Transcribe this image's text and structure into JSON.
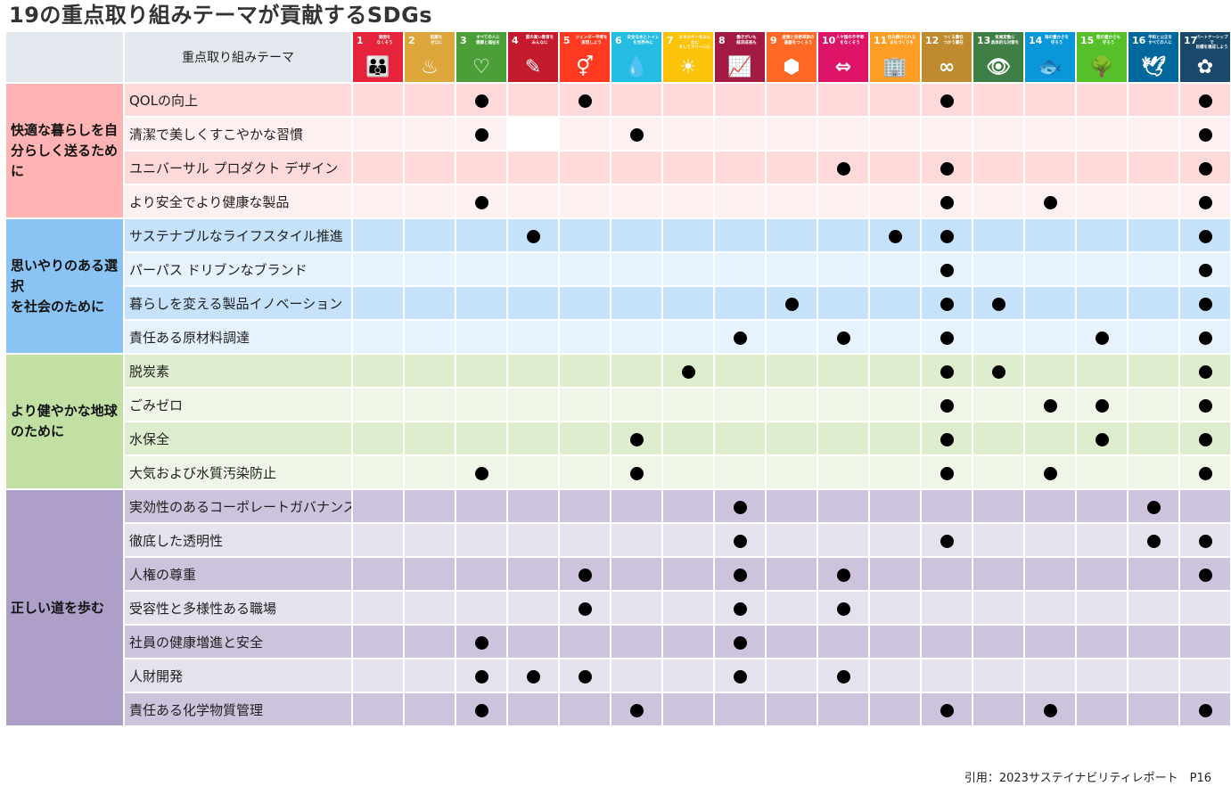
{
  "title": "19の重点取り組みテーマが貢献するSDGs",
  "header_label": "重点取り組みテーマ",
  "sdgs": [
    {
      "num": "1",
      "title": "貧困を\nなくそう",
      "color": "#e5243b",
      "icon": "people-icon",
      "glyph": "👪"
    },
    {
      "num": "2",
      "title": "飢餓を\nゼロに",
      "color": "#dda63a",
      "icon": "bowl-icon",
      "glyph": "♨"
    },
    {
      "num": "3",
      "title": "すべての人に\n健康と福祉を",
      "color": "#4c9f38",
      "icon": "heartbeat-icon",
      "glyph": "♡"
    },
    {
      "num": "4",
      "title": "質の高い教育を\nみんなに",
      "color": "#c5192d",
      "icon": "book-icon",
      "glyph": "✎"
    },
    {
      "num": "5",
      "title": "ジェンダー平等を\n実現しよう",
      "color": "#ff3a21",
      "icon": "gender-icon",
      "glyph": "⚥"
    },
    {
      "num": "6",
      "title": "安全な水とトイレ\nを世界中に",
      "color": "#26bde2",
      "icon": "water-drop-icon",
      "glyph": "💧"
    },
    {
      "num": "7",
      "title": "エネルギーをみんなに\nそしてクリーンに",
      "color": "#fcc30b",
      "icon": "sun-icon",
      "glyph": "☀"
    },
    {
      "num": "8",
      "title": "働きがいも\n経済成長も",
      "color": "#a21942",
      "icon": "growth-chart-icon",
      "glyph": "📈"
    },
    {
      "num": "9",
      "title": "産業と技術革新の\n基盤をつくろう",
      "color": "#fd6925",
      "icon": "cubes-icon",
      "glyph": "⬢"
    },
    {
      "num": "10",
      "title": "人や国の不平等\nをなくそう",
      "color": "#dd1367",
      "icon": "equality-icon",
      "glyph": "⇔"
    },
    {
      "num": "11",
      "title": "住み続けられる\nまちづくりを",
      "color": "#fd9d24",
      "icon": "city-icon",
      "glyph": "🏢"
    },
    {
      "num": "12",
      "title": "つくる責任\nつかう責任",
      "color": "#bf8b2e",
      "icon": "infinity-icon",
      "glyph": "∞"
    },
    {
      "num": "13",
      "title": "気候変動に\n具体的な対策を",
      "color": "#3f7e44",
      "icon": "eye-icon",
      "glyph": "👁"
    },
    {
      "num": "14",
      "title": "海の豊かさを\n守ろう",
      "color": "#0a97d9",
      "icon": "fish-icon",
      "glyph": "🐟"
    },
    {
      "num": "15",
      "title": "陸の豊かさも\n守ろう",
      "color": "#56c02b",
      "icon": "tree-icon",
      "glyph": "🌳"
    },
    {
      "num": "16",
      "title": "平和と公正を\nすべての人に",
      "color": "#00689d",
      "icon": "dove-icon",
      "glyph": "🕊"
    },
    {
      "num": "17",
      "title": "パートナーシップで\n目標を達成しよう",
      "color": "#19486a",
      "icon": "flower-rings-icon",
      "glyph": "✿"
    }
  ],
  "groups": [
    {
      "label": "快適な暮らしを自\n分らしく送るために",
      "color": "#ffb3b3",
      "rows": [
        {
          "theme": "QOLの向上",
          "marks": [
            3,
            5,
            12,
            17
          ]
        },
        {
          "theme": "清潔で美しくすこやかな習慣",
          "marks": [
            3,
            6,
            17
          ],
          "blank": [
            4
          ]
        },
        {
          "theme": "ユニバーサル プロダクト デザイン",
          "marks": [
            10,
            12,
            17
          ]
        },
        {
          "theme": "より安全でより健康な製品",
          "marks": [
            3,
            12,
            14,
            17
          ]
        }
      ]
    },
    {
      "label": "思いやりのある選択\nを社会のために",
      "color": "#89c4f4",
      "rows": [
        {
          "theme": "サステナブルなライフスタイル推進",
          "marks": [
            4,
            11,
            12,
            17
          ]
        },
        {
          "theme": "パーパス ドリブンなブランド",
          "marks": [
            12,
            17
          ]
        },
        {
          "theme": "暮らしを変える製品イノベーション",
          "marks": [
            9,
            12,
            13,
            17
          ]
        },
        {
          "theme": "責任ある原材料調達",
          "marks": [
            8,
            10,
            12,
            15,
            17
          ]
        }
      ]
    },
    {
      "label": "より健やかな地球\nのために",
      "color": "#c3e0a4",
      "rows": [
        {
          "theme": "脱炭素",
          "marks": [
            7,
            12,
            13,
            17
          ]
        },
        {
          "theme": "ごみゼロ",
          "marks": [
            12,
            14,
            15,
            17
          ]
        },
        {
          "theme": "水保全",
          "marks": [
            6,
            12,
            15,
            17
          ]
        },
        {
          "theme": "大気および水質汚染防止",
          "marks": [
            3,
            6,
            12,
            14,
            17
          ]
        }
      ]
    },
    {
      "label": "正しい道を歩む",
      "color": "#ae9fc9",
      "rows": [
        {
          "theme": "実効性のあるコーポレートガバナンス",
          "marks": [
            8,
            16
          ]
        },
        {
          "theme": "徹底した透明性",
          "marks": [
            8,
            12,
            16,
            17
          ]
        },
        {
          "theme": "人権の尊重",
          "marks": [
            5,
            8,
            10,
            17
          ]
        },
        {
          "theme": "受容性と多様性ある職場",
          "marks": [
            5,
            8,
            10
          ]
        },
        {
          "theme": "社員の健康増進と安全",
          "marks": [
            3,
            8
          ]
        },
        {
          "theme": "人財開発",
          "marks": [
            3,
            4,
            5,
            8,
            10
          ]
        },
        {
          "theme": "責任ある化学物質管理",
          "marks": [
            3,
            6,
            12,
            14,
            17
          ]
        }
      ]
    }
  ],
  "footer": "引用：2023サステイナビリティレポート　P16"
}
